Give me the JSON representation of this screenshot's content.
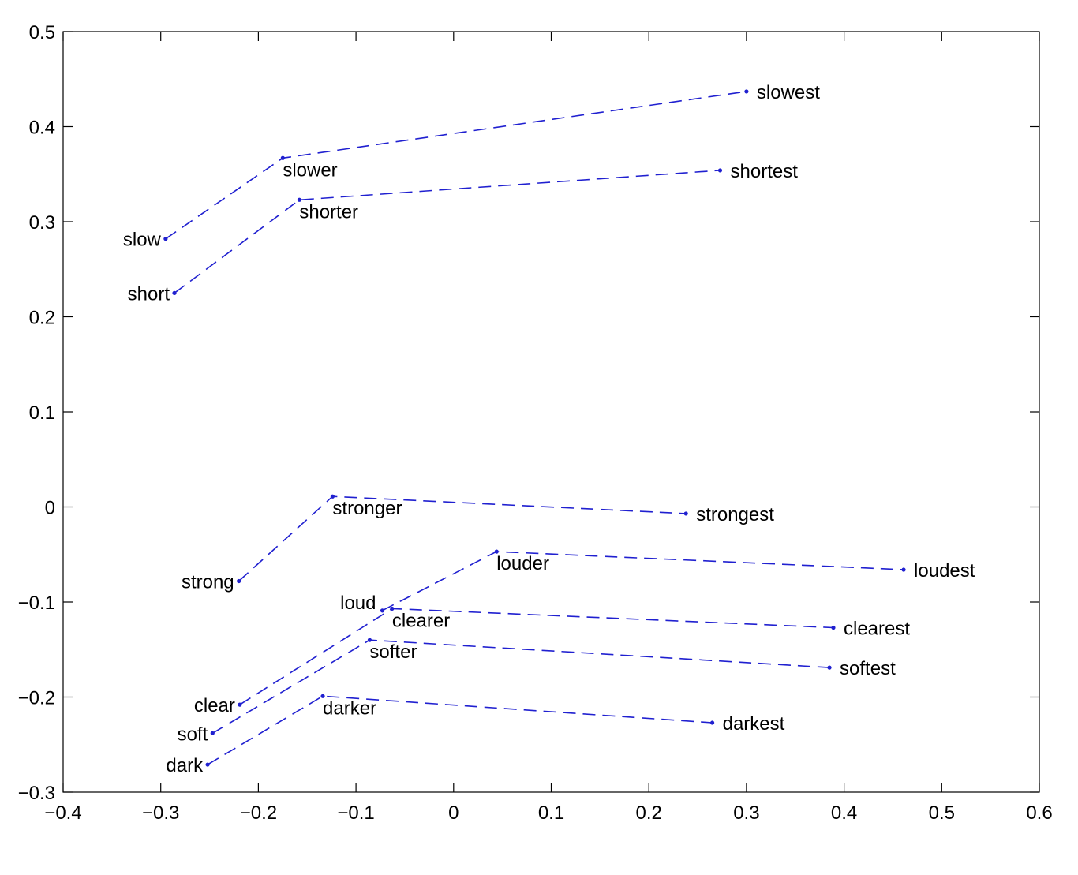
{
  "chart_data": {
    "type": "line",
    "xlim": [
      -0.4,
      0.6
    ],
    "ylim": [
      -0.3,
      0.5
    ],
    "x_ticks": [
      -0.4,
      -0.3,
      -0.2,
      -0.1,
      0,
      0.1,
      0.2,
      0.3,
      0.4,
      0.5,
      0.6
    ],
    "y_ticks": [
      -0.3,
      -0.2,
      -0.1,
      0,
      0.1,
      0.2,
      0.3,
      0.4,
      0.5
    ],
    "x_tick_labels": [
      "−0.4",
      "−0.3",
      "−0.2",
      "−0.1",
      "0",
      "0.1",
      "0.2",
      "0.3",
      "0.4",
      "0.5",
      "0.6"
    ],
    "y_tick_labels": [
      "−0.3",
      "−0.2",
      "−0.1",
      "0",
      "0.1",
      "0.2",
      "0.3",
      "0.4",
      "0.5"
    ],
    "grid": false,
    "line_style": "dashed",
    "color": "#2020d0",
    "series": [
      {
        "points": [
          {
            "label": "slow",
            "x": -0.295,
            "y": 0.282,
            "anchor": "end"
          },
          {
            "label": "slower",
            "x": -0.175,
            "y": 0.367,
            "anchor": "below"
          },
          {
            "label": "slowest",
            "x": 0.3,
            "y": 0.437,
            "anchor": "start"
          }
        ]
      },
      {
        "points": [
          {
            "label": "short",
            "x": -0.286,
            "y": 0.225,
            "anchor": "end"
          },
          {
            "label": "shorter",
            "x": -0.158,
            "y": 0.323,
            "anchor": "below"
          },
          {
            "label": "shortest",
            "x": 0.273,
            "y": 0.354,
            "anchor": "start"
          }
        ]
      },
      {
        "points": [
          {
            "label": "strong",
            "x": -0.22,
            "y": -0.078,
            "anchor": "end"
          },
          {
            "label": "stronger",
            "x": -0.124,
            "y": 0.011,
            "anchor": "below"
          },
          {
            "label": "strongest",
            "x": 0.238,
            "y": -0.007,
            "anchor": "start"
          }
        ]
      },
      {
        "points": [
          {
            "label": "loud",
            "x": -0.073,
            "y": -0.109,
            "anchor": "upper-left"
          },
          {
            "label": "louder",
            "x": 0.044,
            "y": -0.047,
            "anchor": "below"
          },
          {
            "label": "loudest",
            "x": 0.461,
            "y": -0.066,
            "anchor": "start"
          }
        ]
      },
      {
        "points": [
          {
            "label": "clear",
            "x": -0.219,
            "y": -0.208,
            "anchor": "end"
          },
          {
            "label": "clearer",
            "x": -0.063,
            "y": -0.107,
            "anchor": "below"
          },
          {
            "label": "clearest",
            "x": 0.389,
            "y": -0.127,
            "anchor": "start"
          }
        ]
      },
      {
        "points": [
          {
            "label": "soft",
            "x": -0.247,
            "y": -0.238,
            "anchor": "end"
          },
          {
            "label": "softer",
            "x": -0.086,
            "y": -0.14,
            "anchor": "below"
          },
          {
            "label": "softest",
            "x": 0.385,
            "y": -0.169,
            "anchor": "start"
          }
        ]
      },
      {
        "points": [
          {
            "label": "dark",
            "x": -0.252,
            "y": -0.271,
            "anchor": "end"
          },
          {
            "label": "darker",
            "x": -0.134,
            "y": -0.199,
            "anchor": "below"
          },
          {
            "label": "darkest",
            "x": 0.265,
            "y": -0.227,
            "anchor": "start"
          }
        ]
      }
    ]
  }
}
